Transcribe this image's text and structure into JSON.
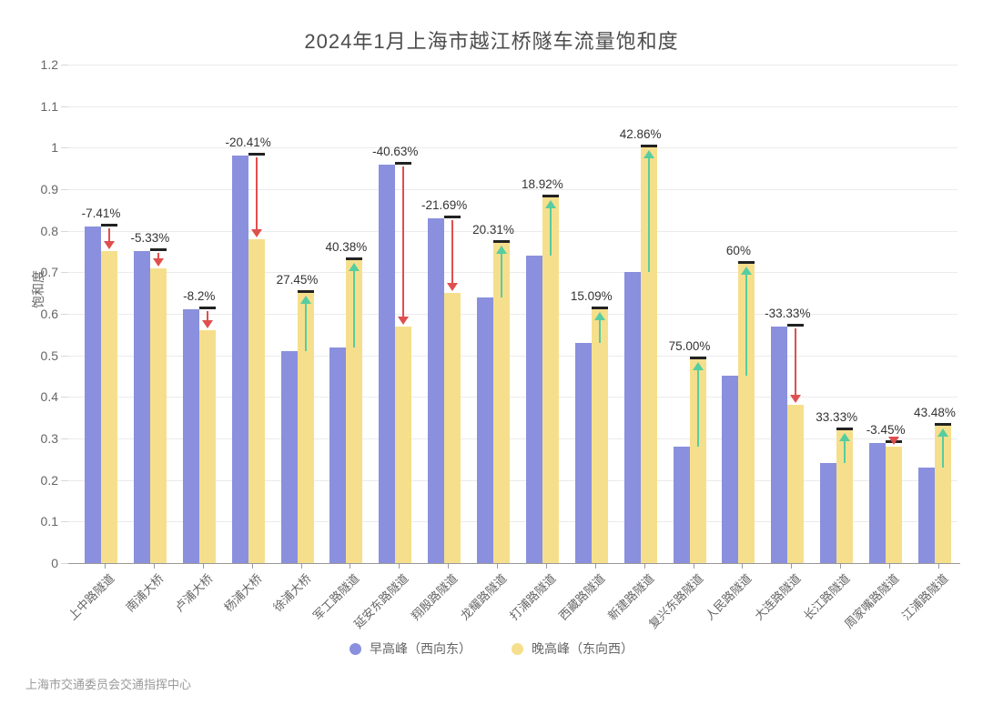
{
  "title": "2024年1月上海市越江桥隧车流量饱和度",
  "footer": "上海市交通委员会交通指挥中心",
  "chart_data": {
    "type": "bar",
    "title": "2024年1月上海市越江桥隧车流量饱和度",
    "xlabel": "",
    "ylabel": "饱和度",
    "ylim": [
      0,
      1.2
    ],
    "ytick_labels": [
      "0",
      "0.1",
      "0.2",
      "0.3",
      "0.4",
      "0.5",
      "0.6",
      "0.7",
      "0.8",
      "0.9",
      "1",
      "1.1",
      "1.2"
    ],
    "grid": true,
    "legend_position": "bottom",
    "categories": [
      "上中路隧道",
      "南浦大桥",
      "卢浦大桥",
      "杨浦大桥",
      "徐浦大桥",
      "军工路隧道",
      "延安东路隧道",
      "翔殷路隧道",
      "龙耀路隧道",
      "打浦路隧道",
      "西藏路隧道",
      "新建路隧道",
      "复兴东路隧道",
      "人民路隧道",
      "大连路隧道",
      "长江路隧道",
      "周家嘴路隧道",
      "江浦路隧道"
    ],
    "series": [
      {
        "name": "早高峰（西向东）",
        "color": "#8A90DD",
        "values": [
          0.81,
          0.75,
          0.61,
          0.98,
          0.51,
          0.52,
          0.96,
          0.83,
          0.64,
          0.74,
          0.53,
          0.7,
          0.28,
          0.45,
          0.57,
          0.24,
          0.29,
          0.23
        ]
      },
      {
        "name": "晚高峰（东向西）",
        "color": "#F6DF8C",
        "values": [
          0.75,
          0.71,
          0.56,
          0.78,
          0.65,
          0.73,
          0.57,
          0.65,
          0.77,
          0.88,
          0.61,
          1.0,
          0.49,
          0.72,
          0.38,
          0.32,
          0.28,
          0.33
        ]
      }
    ],
    "change_labels": [
      "-7.41%",
      "-5.33%",
      "-8.2%",
      "-20.41%",
      "27.45%",
      "40.38%",
      "-40.63%",
      "-21.69%",
      "20.31%",
      "18.92%",
      "15.09%",
      "42.86%",
      "75.00%",
      "60%",
      "-33.33%",
      "33.33%",
      "-3.45%",
      "43.48%"
    ],
    "annotations": {
      "increase_arrow_color": "#56CDA0",
      "decrease_arrow_color": "#DF4F4F",
      "cap_color": "#222222"
    }
  },
  "legend": {
    "items": [
      {
        "label": "早高峰（西向东）",
        "color": "#8A90DD"
      },
      {
        "label": "晚高峰（东向西）",
        "color": "#F6DF8C"
      }
    ]
  }
}
